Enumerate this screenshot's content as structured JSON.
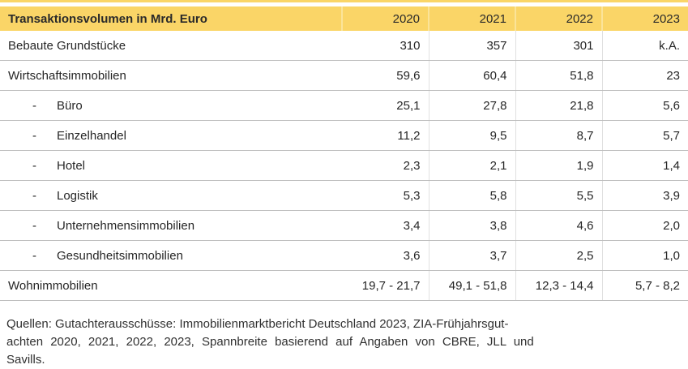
{
  "colors": {
    "header_bg": "#FAD567",
    "header_divider": "#FBE499",
    "row_divider": "#BDBDBD",
    "column_divider": "#E0E0E0",
    "text": "#262626"
  },
  "table": {
    "indent_marker": "-",
    "header": {
      "label": "Transaktionsvolumen in Mrd. Euro",
      "years": [
        "2020",
        "2021",
        "2022",
        "2023"
      ]
    },
    "rows": [
      {
        "label": "Bebaute Grundstücke",
        "indent": false,
        "values": [
          "310",
          "357",
          "301",
          "k.A."
        ]
      },
      {
        "label": "Wirtschaftsimmobilien",
        "indent": false,
        "values": [
          "59,6",
          "60,4",
          "51,8",
          "23"
        ]
      },
      {
        "label": "Büro",
        "indent": true,
        "values": [
          "25,1",
          "27,8",
          "21,8",
          "5,6"
        ]
      },
      {
        "label": "Einzelhandel",
        "indent": true,
        "values": [
          "11,2",
          "9,5",
          "8,7",
          "5,7"
        ]
      },
      {
        "label": "Hotel",
        "indent": true,
        "values": [
          "2,3",
          "2,1",
          "1,9",
          "1,4"
        ]
      },
      {
        "label": "Logistik",
        "indent": true,
        "values": [
          "5,3",
          "5,8",
          "5,5",
          "3,9"
        ]
      },
      {
        "label": "Unternehmensimmobilien",
        "indent": true,
        "values": [
          "3,4",
          "3,8",
          "4,6",
          "2,0"
        ]
      },
      {
        "label": "Gesundheitsimmobilien",
        "indent": true,
        "values": [
          "3,6",
          "3,7",
          "2,5",
          "1,0"
        ]
      },
      {
        "label": "Wohnimmobilien",
        "indent": false,
        "values": [
          "19,7 - 21,7",
          "49,1 - 51,8",
          "12,3 - 14,4",
          "5,7 - 8,2"
        ]
      }
    ]
  },
  "footer": {
    "lines": [
      "Quellen: Gutachterausschüsse: Immobilienmarktbericht Deutschland 2023, ZIA-Frühjahrsgut-",
      "achten 2020, 2021, 2022, 2023, Spannbreite basierend auf Angaben von CBRE, JLL und",
      "Savills."
    ]
  }
}
